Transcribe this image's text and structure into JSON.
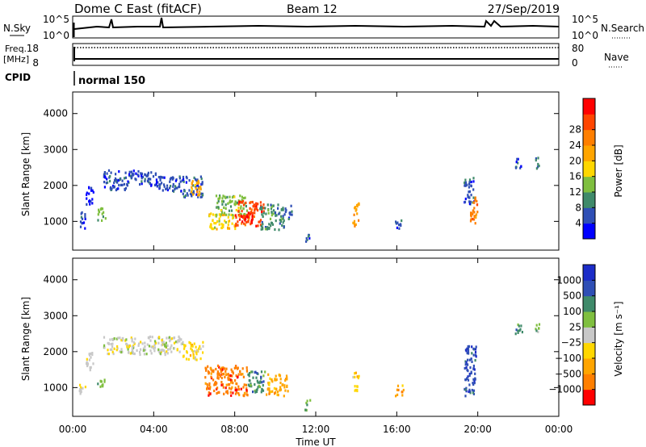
{
  "header": {
    "station": "Dome C East (fitACF)",
    "beam": "Beam 12",
    "date": "27/Sep/2019"
  },
  "noise_panel": {
    "left_label": "N.Sky",
    "right_label": "N.Search",
    "left_ticks": [
      "10^5",
      "10^0"
    ],
    "right_ticks": [
      "10^5",
      "10^0"
    ]
  },
  "freq_panel": {
    "left_label_1": "Freq.",
    "left_label_2": "[MHz]",
    "right_label": "Nave",
    "left_ticks": [
      "18",
      "8"
    ],
    "right_ticks": [
      "80",
      "0"
    ]
  },
  "cpid_panel": {
    "label": "CPID",
    "mode": "normal 150"
  },
  "colors": {
    "power_scale": [
      "#0000ff",
      "#2f4fb5",
      "#3f8a6a",
      "#7fbf3f",
      "#ffd700",
      "#ffa500",
      "#ff7f00",
      "#ff4500",
      "#ff0000"
    ],
    "velocity_scale": [
      "#1c2cc8",
      "#2f4fb5",
      "#3f8a6a",
      "#7fbf3f",
      "#c8c8c8",
      "#ffd700",
      "#ffa500",
      "#ff7f00",
      "#ff0000"
    ]
  },
  "chart_data": [
    {
      "type": "heatmap",
      "title": "",
      "quantity": "Power",
      "ylabel": "Slant Range [km]",
      "ylim": [
        200,
        4600
      ],
      "xlim": [
        0,
        24
      ],
      "yticks": [
        1000,
        2000,
        3000,
        4000
      ],
      "colorbar": {
        "label": "Power [dB]",
        "ticks": [
          "4",
          "8",
          "12",
          "16",
          "20",
          "24",
          "28"
        ]
      },
      "regions": [
        {
          "t0": 0.3,
          "t1": 0.6,
          "r0": 800,
          "r1": 1300,
          "level": 1
        },
        {
          "t0": 0.6,
          "t1": 1.0,
          "r0": 1500,
          "r1": 2000,
          "level": 0
        },
        {
          "t0": 1.2,
          "t1": 1.6,
          "r0": 1000,
          "r1": 1400,
          "level": 3
        },
        {
          "t0": 1.5,
          "t1": 2.8,
          "r0": 1900,
          "r1": 2450,
          "level": 1
        },
        {
          "t0": 2.8,
          "t1": 4.2,
          "r0": 2000,
          "r1": 2450,
          "level": 1
        },
        {
          "t0": 4.2,
          "t1": 5.4,
          "r0": 1850,
          "r1": 2300,
          "level": 1
        },
        {
          "t0": 5.4,
          "t1": 6.4,
          "r0": 1700,
          "r1": 2300,
          "level": 1
        },
        {
          "t0": 5.8,
          "t1": 6.3,
          "r0": 1700,
          "r1": 2200,
          "level": 5
        },
        {
          "t0": 6.6,
          "t1": 8.0,
          "r0": 800,
          "r1": 1250,
          "level": 4
        },
        {
          "t0": 7.0,
          "t1": 8.6,
          "r0": 1200,
          "r1": 1750,
          "level": 3
        },
        {
          "t0": 8.0,
          "t1": 9.4,
          "r0": 900,
          "r1": 1600,
          "level": 7
        },
        {
          "t0": 8.3,
          "t1": 9.0,
          "r0": 1000,
          "r1": 1300,
          "level": 8
        },
        {
          "t0": 9.2,
          "t1": 10.4,
          "r0": 800,
          "r1": 1500,
          "level": 2
        },
        {
          "t0": 10.4,
          "t1": 10.8,
          "r0": 1100,
          "r1": 1500,
          "level": 1
        },
        {
          "t0": 11.4,
          "t1": 11.7,
          "r0": 400,
          "r1": 700,
          "level": 1
        },
        {
          "t0": 13.8,
          "t1": 14.1,
          "r0": 900,
          "r1": 1600,
          "level": 5
        },
        {
          "t0": 15.9,
          "t1": 16.3,
          "r0": 800,
          "r1": 1100,
          "level": 1
        },
        {
          "t0": 19.3,
          "t1": 19.8,
          "r0": 1500,
          "r1": 2300,
          "level": 1
        },
        {
          "t0": 19.6,
          "t1": 20.0,
          "r0": 900,
          "r1": 1700,
          "level": 6
        },
        {
          "t0": 21.8,
          "t1": 22.2,
          "r0": 2500,
          "r1": 2800,
          "level": 1
        },
        {
          "t0": 22.7,
          "t1": 23.0,
          "r0": 2500,
          "r1": 2800,
          "level": 2
        }
      ]
    },
    {
      "type": "heatmap",
      "title": "",
      "quantity": "Velocity",
      "xlabel": "Time UT",
      "ylabel": "Slant Range [km]",
      "ylim": [
        200,
        4600
      ],
      "xlim": [
        0,
        24
      ],
      "yticks": [
        1000,
        2000,
        3000,
        4000
      ],
      "xticks": [
        "00:00",
        "04:00",
        "08:00",
        "12:00",
        "16:00",
        "20:00",
        "00:00"
      ],
      "colorbar": {
        "label": "Velocity [m s⁻¹]",
        "ticks": [
          "1000",
          "500",
          "100",
          "25",
          "−25",
          "−100",
          "−500",
          "−1000"
        ]
      },
      "regions": [
        {
          "t0": 0.3,
          "t1": 0.6,
          "r0": 800,
          "r1": 1200,
          "level": 4
        },
        {
          "t0": 0.6,
          "t1": 1.0,
          "r0": 1500,
          "r1": 2000,
          "level": 4
        },
        {
          "t0": 1.2,
          "t1": 1.6,
          "r0": 1000,
          "r1": 1300,
          "level": 3
        },
        {
          "t0": 1.5,
          "t1": 5.4,
          "r0": 1950,
          "r1": 2450,
          "level": 4
        },
        {
          "t0": 5.4,
          "t1": 6.4,
          "r0": 1800,
          "r1": 2300,
          "level": 5
        },
        {
          "t0": 6.5,
          "t1": 8.6,
          "r0": 800,
          "r1": 1650,
          "level": 7
        },
        {
          "t0": 8.6,
          "t1": 9.5,
          "r0": 900,
          "r1": 1500,
          "level": 2
        },
        {
          "t0": 9.5,
          "t1": 10.6,
          "r0": 800,
          "r1": 1400,
          "level": 6
        },
        {
          "t0": 11.4,
          "t1": 11.7,
          "r0": 400,
          "r1": 700,
          "level": 3
        },
        {
          "t0": 13.8,
          "t1": 14.1,
          "r0": 900,
          "r1": 1500,
          "level": 5
        },
        {
          "t0": 15.9,
          "t1": 16.3,
          "r0": 800,
          "r1": 1100,
          "level": 6
        },
        {
          "t0": 19.3,
          "t1": 19.9,
          "r0": 800,
          "r1": 2200,
          "level": 1
        },
        {
          "t0": 21.8,
          "t1": 22.2,
          "r0": 2500,
          "r1": 2800,
          "level": 2
        },
        {
          "t0": 22.7,
          "t1": 23.0,
          "r0": 2500,
          "r1": 2800,
          "level": 3
        }
      ]
    }
  ]
}
